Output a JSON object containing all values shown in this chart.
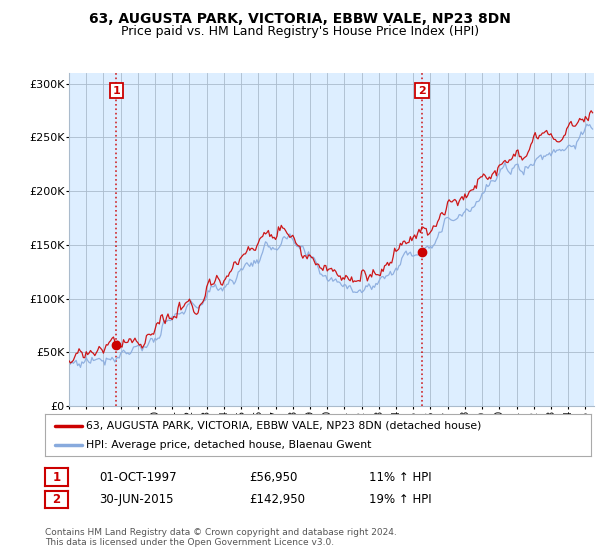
{
  "title": "63, AUGUSTA PARK, VICTORIA, EBBW VALE, NP23 8DN",
  "subtitle": "Price paid vs. HM Land Registry's House Price Index (HPI)",
  "ylabel_ticks": [
    "£0",
    "£50K",
    "£100K",
    "£150K",
    "£200K",
    "£250K",
    "£300K"
  ],
  "ytick_values": [
    0,
    50000,
    100000,
    150000,
    200000,
    250000,
    300000
  ],
  "ylim": [
    0,
    310000
  ],
  "xlim_start": 1995.0,
  "xlim_end": 2025.5,
  "purchase1_year": 1997.75,
  "purchase1_price": 56950,
  "purchase1_label": "1",
  "purchase1_date": "01-OCT-1997",
  "purchase1_pct": "11% ↑ HPI",
  "purchase2_year": 2015.5,
  "purchase2_price": 142950,
  "purchase2_label": "2",
  "purchase2_date": "30-JUN-2015",
  "purchase2_pct": "19% ↑ HPI",
  "line_color_property": "#cc0000",
  "line_color_hpi": "#88aadd",
  "dot_color": "#cc0000",
  "vline_color": "#cc0000",
  "legend_property": "63, AUGUSTA PARK, VICTORIA, EBBW VALE, NP23 8DN (detached house)",
  "legend_hpi": "HPI: Average price, detached house, Blaenau Gwent",
  "copyright": "Contains HM Land Registry data © Crown copyright and database right 2024.\nThis data is licensed under the Open Government Licence v3.0.",
  "background_color": "#ffffff",
  "chart_bg_color": "#ddeeff",
  "grid_color": "#aabbcc",
  "annotation_box_color": "#cc0000",
  "title_fontsize": 10,
  "subtitle_fontsize": 9
}
